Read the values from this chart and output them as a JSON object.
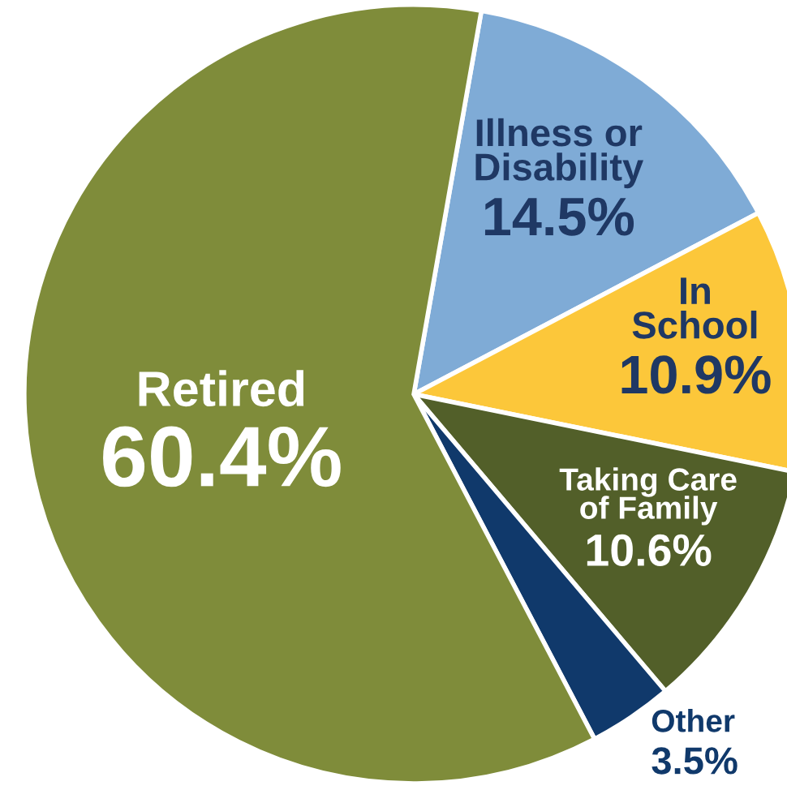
{
  "chart_data": {
    "type": "pie",
    "categories": [
      "Illness or\nDisability",
      "In\nSchool",
      "Taking Care\nof Family",
      "Other",
      "Retired"
    ],
    "values": [
      14.5,
      10.9,
      10.6,
      3.5,
      60.4
    ],
    "colors": [
      "#7fabd6",
      "#fcc73a",
      "#525f29",
      "#10396b",
      "#7f8c3a"
    ],
    "value_labels": [
      "14.5%",
      "10.9%",
      "10.6%",
      "3.5%",
      "60.4%"
    ]
  }
}
